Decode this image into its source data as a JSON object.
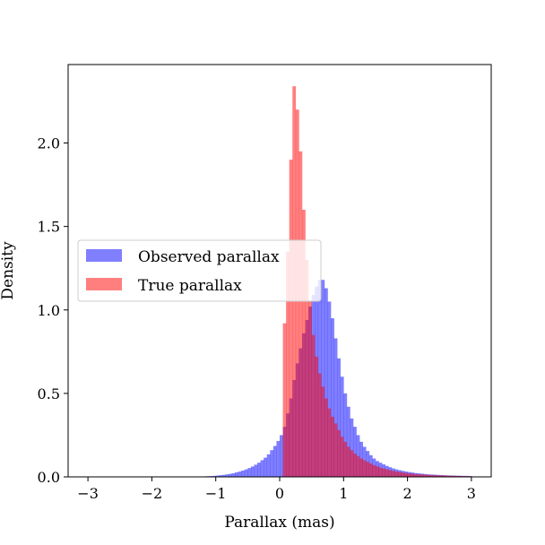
{
  "chart_data": {
    "type": "bar",
    "subtype": "histogram",
    "xlabel": "Parallax (mas)",
    "ylabel": "Density",
    "xlim": [
      -3.31,
      3.31
    ],
    "ylim": [
      0,
      2.47
    ],
    "xticks": [
      -3,
      -2,
      -1,
      0,
      1,
      2,
      3
    ],
    "xtick_labels": [
      "−3",
      "−2",
      "−1",
      "0",
      "1",
      "2",
      "3"
    ],
    "yticks": [
      0,
      0.5,
      1.0,
      1.5,
      2.0
    ],
    "ytick_labels": [
      "0.0",
      "0.5",
      "1.0",
      "1.5",
      "2.0"
    ],
    "grid": false,
    "legend_placement": "center-left",
    "bin_start": -1.2,
    "bin_width": 0.05,
    "series": [
      {
        "name": "Observed parallax",
        "color": "#0000ff",
        "alpha": 0.5,
        "values": [
          0.003,
          0.004,
          0.005,
          0.006,
          0.008,
          0.01,
          0.012,
          0.015,
          0.018,
          0.022,
          0.027,
          0.032,
          0.038,
          0.045,
          0.053,
          0.062,
          0.073,
          0.085,
          0.1,
          0.115,
          0.135,
          0.16,
          0.185,
          0.215,
          0.25,
          0.3,
          0.38,
          0.47,
          0.58,
          0.68,
          0.77,
          0.86,
          0.94,
          1.02,
          1.09,
          1.14,
          1.18,
          1.18,
          1.13,
          1.05,
          0.95,
          0.83,
          0.71,
          0.6,
          0.5,
          0.42,
          0.35,
          0.3,
          0.25,
          0.21,
          0.18,
          0.155,
          0.13,
          0.11,
          0.095,
          0.085,
          0.075,
          0.066,
          0.058,
          0.051,
          0.045,
          0.04,
          0.036,
          0.032,
          0.029,
          0.026,
          0.023,
          0.021,
          0.019,
          0.017,
          0.015,
          0.014,
          0.013,
          0.012,
          0.011,
          0.01,
          0.009,
          0.008,
          0.008,
          0.007,
          0.007,
          0.006,
          0.006,
          0.005
        ]
      },
      {
        "name": "True parallax",
        "color": "#ff0000",
        "alpha": 0.5,
        "values": [
          0,
          0,
          0,
          0,
          0,
          0,
          0,
          0,
          0,
          0,
          0,
          0,
          0,
          0,
          0,
          0,
          0,
          0,
          0,
          0,
          0,
          0,
          0,
          0,
          0,
          0.92,
          1.35,
          1.9,
          2.34,
          2.2,
          1.95,
          1.6,
          1.3,
          1.05,
          0.85,
          0.72,
          0.62,
          0.54,
          0.47,
          0.41,
          0.36,
          0.32,
          0.28,
          0.24,
          0.21,
          0.18,
          0.16,
          0.14,
          0.125,
          0.11,
          0.1,
          0.09,
          0.08,
          0.07,
          0.063,
          0.056,
          0.05,
          0.045,
          0.04,
          0.036,
          0.032,
          0.029,
          0.026,
          0.023,
          0.021,
          0.019,
          0.017,
          0.015,
          0.014,
          0.013,
          0.012,
          0.011,
          0.01,
          0.009,
          0.008,
          0.008,
          0.007,
          0.007,
          0.006,
          0.006,
          0.005,
          0.005,
          0.004,
          0.004
        ]
      }
    ]
  }
}
